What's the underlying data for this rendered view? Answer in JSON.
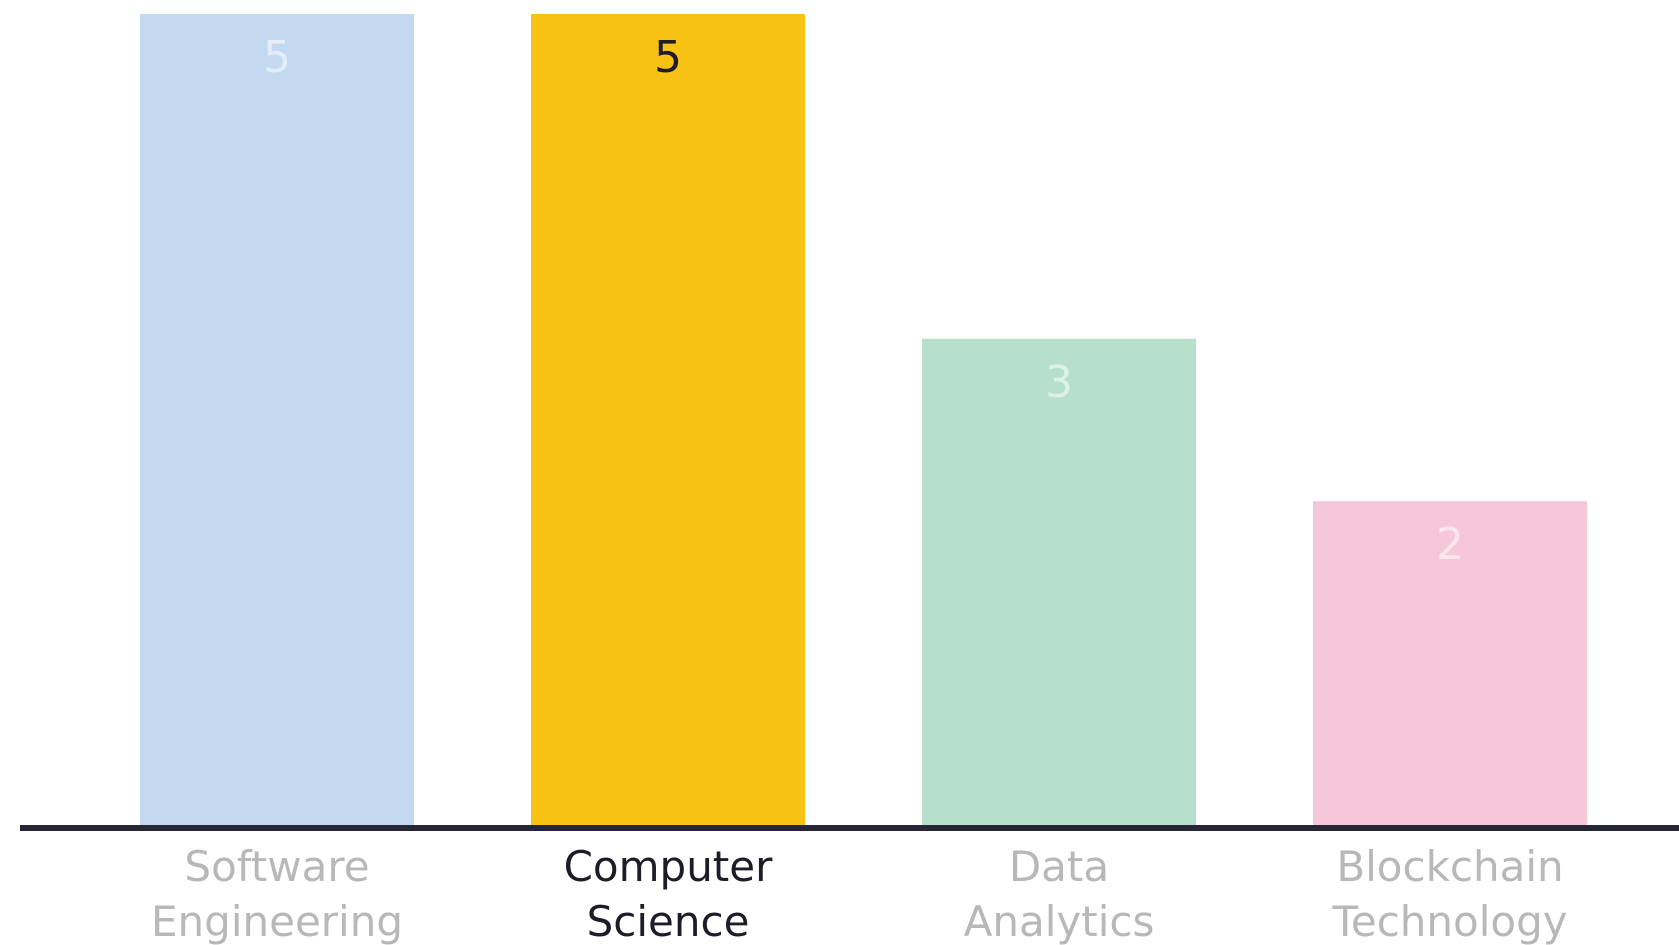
{
  "chart_data": {
    "type": "bar",
    "categories": [
      [
        "Software",
        "Engineering"
      ],
      [
        "Computer",
        "Science"
      ],
      [
        "Data",
        "Analytics"
      ],
      [
        "Blockchain",
        "Technology"
      ]
    ],
    "values": [
      5,
      5,
      3,
      2
    ],
    "ylim": [
      0,
      5
    ],
    "highlighted_index": 1,
    "grid": false,
    "colors": {
      "bars": [
        "#c2d9f0",
        "#f8c214",
        "#b6dfcc",
        "#f6c7d8"
      ],
      "axis": "#262636",
      "highlight_text": "#1d1d28",
      "muted_text": "#b8b8b8",
      "bar_value_muted": "#ffffff"
    }
  }
}
